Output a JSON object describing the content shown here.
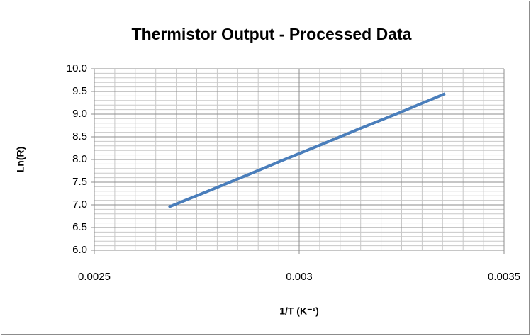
{
  "chart_data": {
    "type": "line",
    "title": "Thermistor Output - Processed Data",
    "x_label": "1/T (K⁻¹)",
    "y_label": "Ln(R)",
    "series": [
      {
        "name": "Ln(R)",
        "color": "#4a7ebb",
        "x": [
          0.002681,
          0.002793,
          0.002874,
          0.002959,
          0.003049,
          0.003145,
          0.003247,
          0.003356
        ],
        "values": [
          6.95,
          7.36,
          7.66,
          7.98,
          8.31,
          8.67,
          9.04,
          9.45
        ]
      }
    ],
    "xlim": [
      0.0025,
      0.0035
    ],
    "xticks": [
      0.0025,
      0.003,
      0.0035
    ],
    "ylim": [
      6.0,
      10.0
    ],
    "yticks": [
      {
        "value": 6.0,
        "label": "6.0"
      },
      6.5,
      {
        "value": 7.0,
        "label": "7.0"
      },
      7.5,
      {
        "value": 8.0,
        "label": "8.0"
      },
      8.5,
      {
        "value": 9.0,
        "label": "9.0"
      },
      9.5,
      {
        "value": 10.0,
        "label": "10.0"
      }
    ],
    "grid": true,
    "minor_grid": true
  }
}
